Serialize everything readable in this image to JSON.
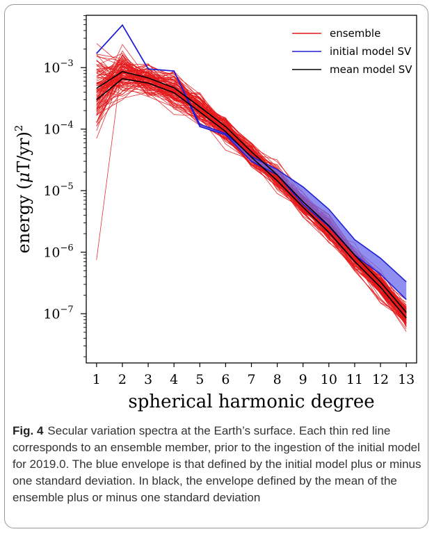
{
  "figure": {
    "label": "Fig. 4",
    "caption": "Secular variation spectra at the Earth’s surface. Each thin red line corresponds to an ensemble member, prior to the ingestion of the initial model for 2019.0. The blue envelope is that defined by the initial model plus or minus one standard deviation. In black, the envelope defined by the mean of the ensemble plus or minus one standard deviation"
  },
  "chart_data": {
    "type": "line",
    "title": "",
    "xlabel": "spherical harmonic degree",
    "ylabel_base": "energy (",
    "ylabel_mu": "μ",
    "ylabel_units": "T/yr)",
    "ylabel_exp": "2",
    "x": [
      1,
      2,
      3,
      4,
      5,
      6,
      7,
      8,
      9,
      10,
      11,
      12,
      13
    ],
    "xlim": [
      0.6,
      13.4
    ],
    "ylim_exp": [
      -7.8,
      -2.15
    ],
    "yscale": "log",
    "y_ticks": [
      {
        "value": 1e-07,
        "base": "10",
        "exp": "−7"
      },
      {
        "value": 1e-06,
        "base": "10",
        "exp": "−6"
      },
      {
        "value": 1e-05,
        "base": "10",
        "exp": "−5"
      },
      {
        "value": 0.0001,
        "base": "10",
        "exp": "−4"
      },
      {
        "value": 0.001,
        "base": "10",
        "exp": "−3"
      }
    ],
    "x_tick_labels": [
      "1",
      "2",
      "3",
      "4",
      "5",
      "6",
      "7",
      "8",
      "9",
      "10",
      "11",
      "12",
      "13"
    ],
    "grid": false,
    "legend_position": "top-right",
    "legend": [
      {
        "label": "ensemble",
        "color": "#e31a1c"
      },
      {
        "label": "initial model SV",
        "color": "#1f1fd6"
      },
      {
        "label": "mean model SV",
        "color": "#000000"
      }
    ],
    "ensemble_count": 100,
    "colors": {
      "ensemble": "#e31a1c",
      "initial": "#1f1fd6",
      "initial_fill": "#6a6aee",
      "mean": "#000000"
    },
    "initial_center": [
      0.0017,
      0.0049,
      0.00095,
      0.00088,
      0.000115,
      8.3e-05,
      3.3e-05,
      2e-05,
      8e-06,
      3.6e-06,
      1.2e-06,
      6e-07,
      2.3e-07
    ],
    "initial_upper": [
      0.0017,
      0.0049,
      0.00095,
      0.00088,
      0.00012,
      8.5e-05,
      3.6e-05,
      2.2e-05,
      1.15e-05,
      5e-06,
      1.6e-06,
      8e-07,
      3.3e-07
    ],
    "initial_lower": [
      0.0017,
      0.0049,
      0.00095,
      0.00088,
      0.00011,
      8.1e-05,
      3e-05,
      1.8e-05,
      6e-06,
      2.6e-06,
      9e-07,
      4.4e-07,
      1.7e-07
    ],
    "mean_center": [
      0.00038,
      0.00076,
      0.00062,
      0.00043,
      0.00021,
      0.0001,
      3.9e-05,
      1.6e-05,
      6e-06,
      2.4e-06,
      8e-07,
      3e-07,
      9.5e-08
    ],
    "mean_upper": [
      0.00046,
      0.00086,
      0.00068,
      0.00047,
      0.00023,
      0.00011,
      4.3e-05,
      1.8e-05,
      6.6e-06,
      2.7e-06,
      9e-07,
      3.3e-07,
      1.05e-07
    ],
    "mean_lower": [
      0.0003,
      0.00066,
      0.00056,
      0.00039,
      0.00019,
      9.1e-05,
      3.5e-05,
      1.45e-05,
      5.4e-06,
      2.1e-06,
      7.1e-07,
      2.7e-07,
      8.5e-08
    ],
    "ensemble_spread_log10": [
      0.75,
      0.42,
      0.32,
      0.3,
      0.24,
      0.22,
      0.2,
      0.2,
      0.2,
      0.2,
      0.2,
      0.2,
      0.2
    ],
    "ensemble_outlier": {
      "degree": 1,
      "value": 7.5e-07
    }
  }
}
